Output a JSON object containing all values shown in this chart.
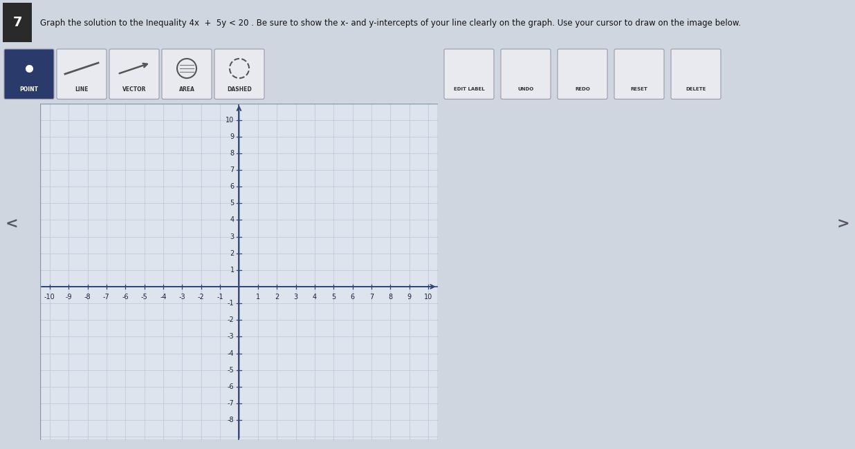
{
  "title_text": "Graph the solution to the Inequality 4x  +  5y < 20 . Be sure to show the x- and y-intercepts of your line clearly on the graph. Use your cursor to draw on the image below.",
  "question_number": "7",
  "toolbar_buttons_left": [
    "POINT",
    "LINE",
    "VECTOR",
    "AREA",
    "DASHED"
  ],
  "toolbar_buttons_right": [
    "EDIT LABEL",
    "UNDO",
    "REDO",
    "RESET",
    "DELETE"
  ],
  "xlim": [
    -10.5,
    10.5
  ],
  "ylim": [
    -9.2,
    11.0
  ],
  "xticks": [
    -10,
    -9,
    -8,
    -7,
    -6,
    -5,
    -4,
    -3,
    -2,
    -1,
    1,
    2,
    3,
    4,
    5,
    6,
    7,
    8,
    9,
    10
  ],
  "yticks": [
    -8,
    -7,
    -6,
    -5,
    -4,
    -3,
    -2,
    -1,
    1,
    2,
    3,
    4,
    5,
    6,
    7,
    8,
    9,
    10
  ],
  "grid_color": "#b0bfcf",
  "grid_alpha": 0.8,
  "axis_color": "#334477",
  "plot_bg_color": "#dde4ee",
  "outer_bg": "#c5ccd8",
  "page_bg": "#d0d6e0",
  "toolbar_bg": "#d8dce6",
  "header_bg": "#d0d6e2",
  "tick_fontsize": 7,
  "tick_color": "#222233",
  "number_box_color": "#2a2a2a",
  "number_text_color": "#ffffff",
  "point_btn_bg": "#2a3a6a",
  "other_btn_bg": "#e8eaf0",
  "btn_border": "#999aaa"
}
